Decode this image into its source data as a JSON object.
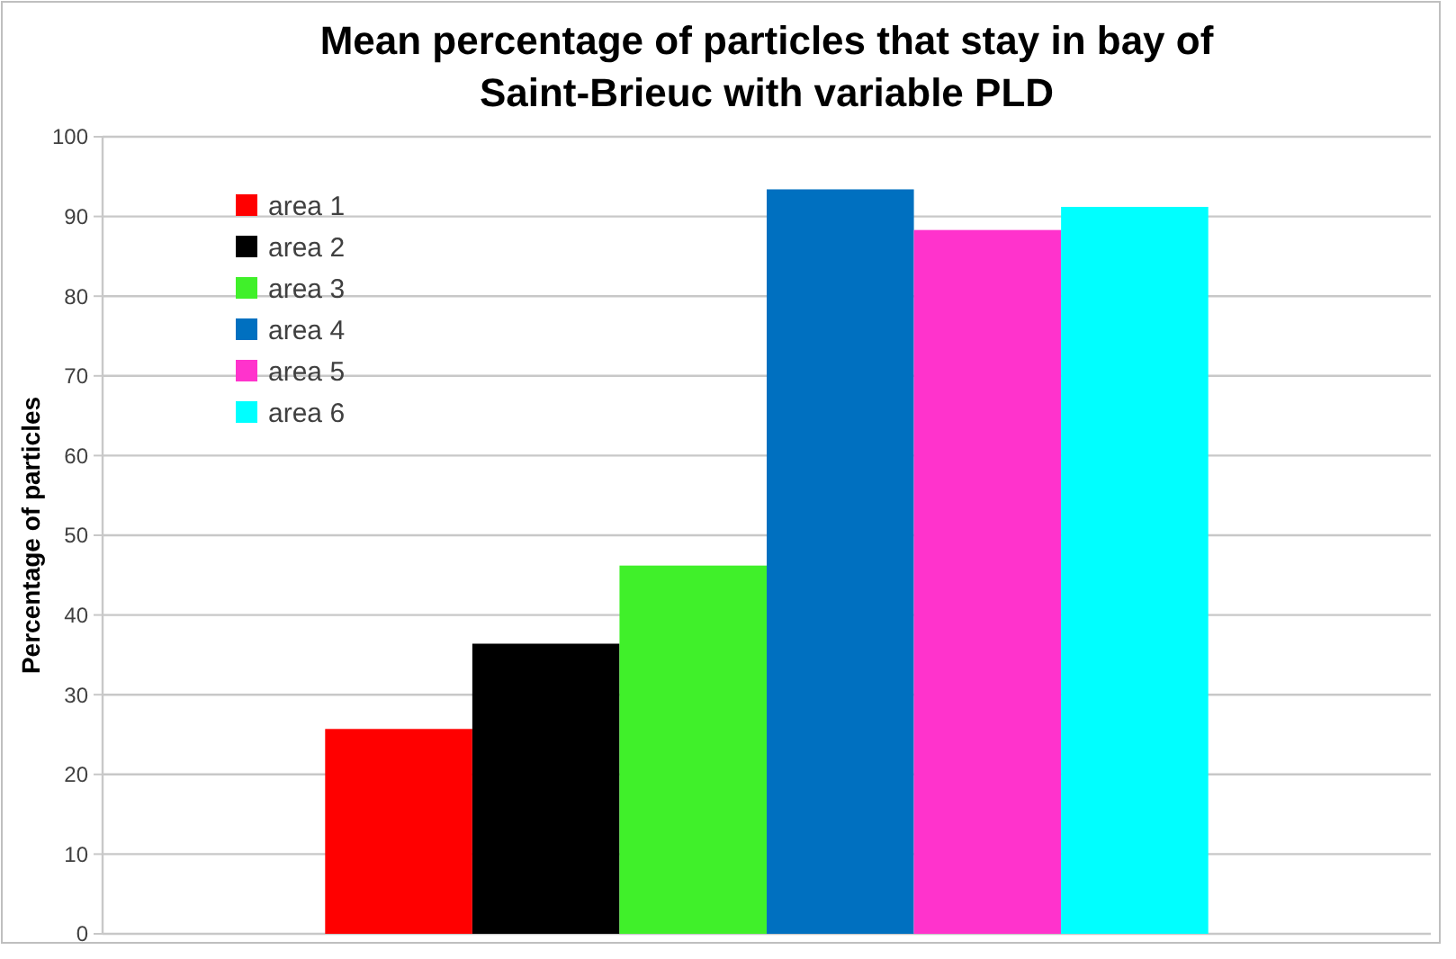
{
  "chart_data": {
    "type": "bar",
    "title": "Mean percentage of particles that stay in bay of Saint-Brieuc with variable PLD",
    "ylabel": "Percentage of particles",
    "categories": [
      null
    ],
    "series": [
      {
        "name": "area 1",
        "color": "#ff0000",
        "values": [
          25.7
        ]
      },
      {
        "name": "area 2",
        "color": "#000000",
        "values": [
          36.4
        ]
      },
      {
        "name": "area 3",
        "color": "#40f02a",
        "values": [
          46.2
        ]
      },
      {
        "name": "area 4",
        "color": "#0070c0",
        "values": [
          93.4
        ]
      },
      {
        "name": "area 5",
        "color": "#ff33cc",
        "values": [
          88.3
        ]
      },
      {
        "name": "area 6",
        "color": "#00ffff",
        "values": [
          91.2
        ]
      }
    ],
    "ylim": [
      0,
      100
    ],
    "yticks": [
      0,
      10,
      20,
      30,
      40,
      50,
      60,
      70,
      80,
      90,
      100
    ],
    "grid": "y",
    "legend": "top left"
  }
}
